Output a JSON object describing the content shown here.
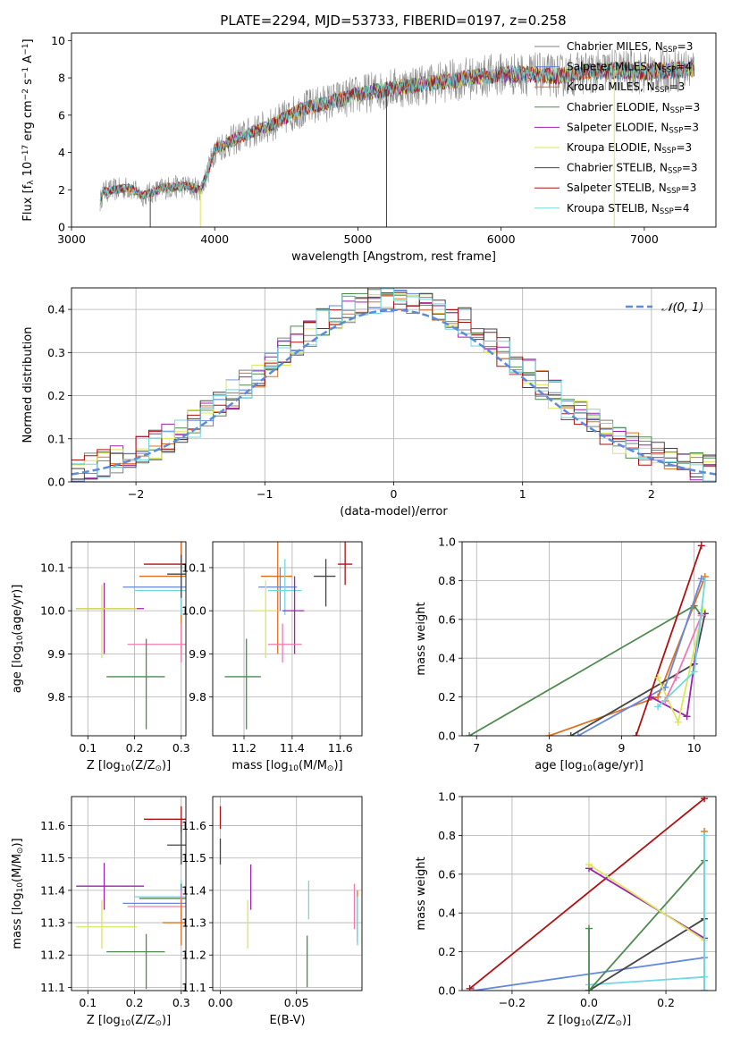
{
  "figure": {
    "title": "PLATE=2294, MJD=53733, FIBERID=0197, z=0.258"
  },
  "colors": {
    "Chabrier MILES": "#808080",
    "Salpeter MILES": "#6688dd",
    "Kroupa MILES": "#e07020",
    "Chabrier ELODIE": "#4f8a4f",
    "Salpeter ELODIE": "#a020b0",
    "Kroupa ELODIE": "#d8e858",
    "Chabrier STELIB": "#444444",
    "Salpeter STELIB": "#b01010",
    "Kroupa STELIB": "#70d8e0",
    "extra_pink": "#f07ab0",
    "normal_curve": "#5b8cd9",
    "grid": "#b0b0b0"
  },
  "chart_data": [
    {
      "type": "line",
      "panel": "spectrum",
      "title": "PLATE=2294, MJD=53733, FIBERID=0197, z=0.258",
      "xlabel": "wavelength [Angstrom, rest frame]",
      "ylabel": "Flux [f_λ 10^-17 erg cm^-2 s^-1 A^-1]",
      "xlim": [
        3000,
        7500
      ],
      "ylim": [
        0,
        10.4
      ],
      "xticks": [
        "3000",
        "4000",
        "5000",
        "6000",
        "7000"
      ],
      "yticks": [
        "0",
        "2",
        "4",
        "6",
        "8",
        "10"
      ],
      "grid": false,
      "legend_position": "top-right",
      "legend": [
        {
          "label": "Chabrier MILES, N",
          "sub": "SSP",
          "suffix": "=3",
          "color": "#808080"
        },
        {
          "label": "Salpeter MILES, N",
          "sub": "SSP",
          "suffix": "=4",
          "color": "#6688dd"
        },
        {
          "label": "Kroupa MILES, N",
          "sub": "SSP",
          "suffix": "=3",
          "color": "#e07020"
        },
        {
          "label": "Chabrier ELODIE, N",
          "sub": "SSP",
          "suffix": "=3",
          "color": "#4f8a4f"
        },
        {
          "label": "Salpeter ELODIE, N",
          "sub": "SSP",
          "suffix": "=3",
          "color": "#a020b0"
        },
        {
          "label": "Kroupa ELODIE, N",
          "sub": "SSP",
          "suffix": "=3",
          "color": "#d8e858"
        },
        {
          "label": "Chabrier STELIB, N",
          "sub": "SSP",
          "suffix": "=3",
          "color": "#444444"
        },
        {
          "label": "Salpeter STELIB, N",
          "sub": "SSP",
          "suffix": "=3",
          "color": "#b01010"
        },
        {
          "label": "Kroupa STELIB, N",
          "sub": "SSP",
          "suffix": "=4",
          "color": "#70d8e0"
        }
      ],
      "continuum": [
        [
          3200,
          1.3
        ],
        [
          3220,
          1.9
        ],
        [
          3400,
          2.1
        ],
        [
          3500,
          1.7
        ],
        [
          3650,
          2.1
        ],
        [
          3800,
          2.2
        ],
        [
          3900,
          2.0
        ],
        [
          3950,
          2.9
        ],
        [
          4000,
          4.2
        ],
        [
          4200,
          4.9
        ],
        [
          4400,
          5.5
        ],
        [
          4600,
          6.3
        ],
        [
          4800,
          6.7
        ],
        [
          5000,
          7.1
        ],
        [
          5200,
          7.4
        ],
        [
          5400,
          7.6
        ],
        [
          5600,
          7.8
        ],
        [
          5800,
          8.0
        ],
        [
          6000,
          8.2
        ],
        [
          6200,
          8.2
        ],
        [
          6400,
          8.1
        ],
        [
          6600,
          8.3
        ],
        [
          6800,
          8.4
        ],
        [
          7000,
          8.3
        ],
        [
          7200,
          8.4
        ],
        [
          7350,
          8.5
        ]
      ]
    },
    {
      "type": "line",
      "panel": "residual-histograms",
      "xlabel": "(data-model)/error",
      "ylabel": "Normed distribution",
      "xlim": [
        -2.5,
        2.5
      ],
      "ylim": [
        0,
        0.45
      ],
      "xticks": [
        "−2",
        "−1",
        "0",
        "1",
        "2"
      ],
      "yticks": [
        "0.0",
        "0.1",
        "0.2",
        "0.3",
        "0.4"
      ],
      "grid": true,
      "legend_position": "top-right",
      "legend": [
        {
          "label": "𝒩(0, 1)",
          "color": "#5b8cd9",
          "style": "dashed"
        }
      ],
      "normal": {
        "mu": 0,
        "sigma": 1
      }
    },
    {
      "type": "scatter",
      "panel": "age-vs-Z",
      "xlabel": "Z [log10(Z/Z⊙)]",
      "ylabel": "age  [log10(age/yr)]",
      "xlim": [
        0.065,
        0.31
      ],
      "ylim": [
        9.71,
        10.16
      ],
      "xticks": [
        "0.1",
        "0.2",
        "0.3"
      ],
      "yticks": [
        "9.8",
        "9.9",
        "10.0",
        "10.1"
      ],
      "grid": true,
      "points": [
        {
          "color": "#b01010",
          "x": 0.3,
          "y": 10.108,
          "xerr": [
            0.22,
            0.31
          ],
          "yerr": [
            10.06,
            10.16
          ]
        },
        {
          "color": "#e07020",
          "x": 0.3,
          "y": 10.08,
          "xerr": [
            0.21,
            0.31
          ],
          "yerr": [
            9.9,
            10.16
          ]
        },
        {
          "color": "#6688dd",
          "x": 0.3,
          "y": 10.055,
          "xerr": [
            0.175,
            0.31
          ],
          "yerr": [
            10.0,
            10.1
          ]
        },
        {
          "color": "#70d8e0",
          "x": 0.3,
          "y": 10.047,
          "xerr": [
            0.2,
            0.31
          ],
          "yerr": [
            9.99,
            10.1
          ]
        },
        {
          "color": "#444444",
          "x": 0.3,
          "y": 10.085,
          "xerr": [
            0.27,
            0.31
          ],
          "yerr": [
            10.03,
            10.13
          ]
        },
        {
          "color": "#a020b0",
          "x": 0.135,
          "y": 10.005,
          "xerr": [
            0.075,
            0.22
          ],
          "yerr": [
            9.9,
            10.065
          ]
        },
        {
          "color": "#d8e858",
          "x": 0.13,
          "y": 10.005,
          "xerr": [
            0.075,
            0.205
          ],
          "yerr": [
            9.89,
            10.06
          ]
        },
        {
          "color": "#f07ab0",
          "x": 0.3,
          "y": 9.922,
          "xerr": [
            0.185,
            0.31
          ],
          "yerr": [
            9.88,
            9.97
          ]
        },
        {
          "color": "#4f8a4f",
          "x": 0.225,
          "y": 9.847,
          "xerr": [
            0.14,
            0.265
          ],
          "yerr": [
            9.725,
            9.935
          ]
        }
      ]
    },
    {
      "type": "scatter",
      "panel": "age-vs-mass",
      "xlabel": "mass [log10(M/M⊙)]",
      "ylabel": "",
      "xlim": [
        11.07,
        11.69
      ],
      "ylim": [
        9.71,
        10.16
      ],
      "xticks": [
        "11.2",
        "11.4",
        "11.6"
      ],
      "yticks": [
        "9.8",
        "9.9",
        "10.0",
        "10.1"
      ],
      "grid": true,
      "points": [
        {
          "color": "#b01010",
          "x": 11.62,
          "y": 10.108,
          "xerr": [
            11.59,
            11.65
          ],
          "yerr": [
            10.06,
            10.16
          ]
        },
        {
          "color": "#e07020",
          "x": 11.34,
          "y": 10.08,
          "xerr": [
            11.27,
            11.4
          ],
          "yerr": [
            9.9,
            10.16
          ]
        },
        {
          "color": "#6688dd",
          "x": 11.35,
          "y": 10.055,
          "xerr": [
            11.26,
            11.42
          ],
          "yerr": [
            10.0,
            10.1
          ]
        },
        {
          "color": "#70d8e0",
          "x": 11.37,
          "y": 10.047,
          "xerr": [
            11.3,
            11.44
          ],
          "yerr": [
            9.99,
            10.12
          ]
        },
        {
          "color": "#444444",
          "x": 11.54,
          "y": 10.08,
          "xerr": [
            11.49,
            11.58
          ],
          "yerr": [
            10.01,
            10.12
          ]
        },
        {
          "color": "#a020b0",
          "x": 11.41,
          "y": 10.0,
          "xerr": [
            11.36,
            11.45
          ],
          "yerr": [
            9.9,
            10.08
          ]
        },
        {
          "color": "#d8e858",
          "x": 11.29,
          "y": 10.0,
          "xerr": [
            11.24,
            11.34
          ],
          "yerr": [
            9.89,
            10.07
          ]
        },
        {
          "color": "#f07ab0",
          "x": 11.36,
          "y": 9.922,
          "xerr": [
            11.3,
            11.44
          ],
          "yerr": [
            9.88,
            9.97
          ]
        },
        {
          "color": "#4f8a4f",
          "x": 11.21,
          "y": 9.847,
          "xerr": [
            11.12,
            11.27
          ],
          "yerr": [
            9.725,
            9.935
          ]
        }
      ]
    },
    {
      "type": "line",
      "panel": "weight-vs-age",
      "xlabel": "age  [log10(age/yr)]",
      "ylabel": "mass weight",
      "xlim": [
        6.8,
        10.3
      ],
      "ylim": [
        0,
        1.0
      ],
      "xticks": [
        "7",
        "8",
        "9",
        "10"
      ],
      "yticks": [
        "0.0",
        "0.2",
        "0.4",
        "0.6",
        "0.8",
        "1.0"
      ],
      "grid": true,
      "series": [
        {
          "color": "#4f8a4f",
          "points": [
            [
              6.9,
              0.0
            ],
            [
              10.0,
              0.67
            ],
            [
              10.1,
              0.62
            ]
          ]
        },
        {
          "color": "#e07020",
          "points": [
            [
              8.0,
              0.0
            ],
            [
              9.5,
              0.2
            ],
            [
              10.15,
              0.82
            ]
          ]
        },
        {
          "color": "#444444",
          "points": [
            [
              8.3,
              0.0
            ],
            [
              10.0,
              0.37
            ],
            [
              10.15,
              0.63
            ]
          ]
        },
        {
          "color": "#6688dd",
          "points": [
            [
              8.4,
              0.0
            ],
            [
              9.6,
              0.25
            ],
            [
              10.1,
              0.81
            ]
          ]
        },
        {
          "color": "#b01010",
          "points": [
            [
              9.2,
              0.0
            ],
            [
              10.1,
              0.98
            ]
          ]
        },
        {
          "color": "#a020b0",
          "points": [
            [
              9.4,
              0.2
            ],
            [
              9.9,
              0.1
            ],
            [
              10.1,
              0.63
            ]
          ]
        },
        {
          "color": "#d8e858",
          "points": [
            [
              9.5,
              0.3
            ],
            [
              9.78,
              0.07
            ],
            [
              10.12,
              0.65
            ]
          ]
        },
        {
          "color": "#f07ab0",
          "points": [
            [
              9.6,
              0.18
            ],
            [
              9.75,
              0.3
            ],
            [
              10.1,
              0.62
            ]
          ]
        },
        {
          "color": "#70d8e0",
          "points": [
            [
              9.5,
              0.15
            ],
            [
              10.0,
              0.33
            ],
            [
              10.15,
              0.8
            ]
          ]
        }
      ]
    },
    {
      "type": "scatter",
      "panel": "mass-vs-Z",
      "xlabel": "Z [log10(Z/Z⊙)]",
      "ylabel": "mass [log10(M/M⊙)]",
      "xlim": [
        0.065,
        0.31
      ],
      "ylim": [
        11.09,
        11.69
      ],
      "xticks": [
        "0.1",
        "0.2",
        "0.3"
      ],
      "yticks": [
        "11.1",
        "11.2",
        "11.3",
        "11.4",
        "11.5",
        "11.6"
      ],
      "grid": true,
      "points": [
        {
          "color": "#b01010",
          "x": 0.3,
          "y": 11.62,
          "xerr": [
            0.22,
            0.31
          ],
          "yerr": [
            11.58,
            11.66
          ]
        },
        {
          "color": "#444444",
          "x": 0.3,
          "y": 11.54,
          "xerr": [
            0.27,
            0.31
          ],
          "yerr": [
            11.48,
            11.6
          ]
        },
        {
          "color": "#a020b0",
          "x": 0.135,
          "y": 11.413,
          "xerr": [
            0.075,
            0.22
          ],
          "yerr": [
            11.34,
            11.485
          ]
        },
        {
          "color": "#70d8e0",
          "x": 0.3,
          "y": 11.38,
          "xerr": [
            0.2,
            0.31
          ],
          "yerr": [
            11.33,
            11.43
          ]
        },
        {
          "color": "#4f8a4f",
          "x": 0.3,
          "y": 11.375,
          "xerr": [
            0.21,
            0.31
          ],
          "yerr": [
            11.32,
            11.42
          ]
        },
        {
          "color": "#6688dd",
          "x": 0.3,
          "y": 11.36,
          "xerr": [
            0.175,
            0.31
          ],
          "yerr": [
            11.31,
            11.41
          ]
        },
        {
          "color": "#f07ab0",
          "x": 0.3,
          "y": 11.35,
          "xerr": [
            0.185,
            0.31
          ],
          "yerr": [
            11.3,
            11.4
          ]
        },
        {
          "color": "#e07020",
          "x": 0.3,
          "y": 11.3,
          "xerr": [
            0.26,
            0.31
          ],
          "yerr": [
            11.23,
            11.37
          ]
        },
        {
          "color": "#d8e858",
          "x": 0.13,
          "y": 11.287,
          "xerr": [
            0.075,
            0.205
          ],
          "yerr": [
            11.22,
            11.37
          ]
        },
        {
          "color": "#4f8a4f",
          "x": 0.225,
          "y": 11.21,
          "xerr": [
            0.14,
            0.265
          ],
          "yerr": [
            11.095,
            11.265
          ]
        }
      ]
    },
    {
      "type": "scatter",
      "panel": "mass-vs-ebv",
      "xlabel": "E(B-V)",
      "ylabel": "",
      "xlim": [
        -0.005,
        0.093
      ],
      "ylim": [
        11.09,
        11.69
      ],
      "xticks": [
        "0.00",
        "0.05"
      ],
      "yticks": [
        "11.1",
        "11.2",
        "11.3",
        "11.4",
        "11.5",
        "11.6"
      ],
      "grid": true,
      "points": [
        {
          "color": "#b01010",
          "x": 0.0,
          "y": 11.62,
          "yerr": [
            11.59,
            11.66
          ]
        },
        {
          "color": "#444444",
          "x": 0.0,
          "y": 11.52,
          "yerr": [
            11.48,
            11.56
          ]
        },
        {
          "color": "#a020b0",
          "x": 0.02,
          "y": 11.41,
          "yerr": [
            11.34,
            11.48
          ]
        },
        {
          "color": "#d8e858",
          "x": 0.018,
          "y": 11.3,
          "yerr": [
            11.22,
            11.37
          ]
        },
        {
          "color": "#70d8e0",
          "x": 0.058,
          "y": 11.37,
          "yerr": [
            11.31,
            11.43
          ]
        },
        {
          "color": "#4f8a4f",
          "x": 0.057,
          "y": 11.2,
          "yerr": [
            11.1,
            11.26
          ]
        },
        {
          "color": "#f07ab0",
          "x": 0.088,
          "y": 11.34,
          "yerr": [
            11.28,
            11.42
          ]
        },
        {
          "color": "#e07020",
          "x": 0.09,
          "y": 11.32,
          "yerr": [
            11.24,
            11.4
          ]
        },
        {
          "color": "#70d8e0",
          "x": 0.09,
          "y": 11.3,
          "yerr": [
            11.23,
            11.38
          ]
        }
      ]
    },
    {
      "type": "line",
      "panel": "weight-vs-Z",
      "xlabel": "Z [log10(Z/Z⊙)]",
      "ylabel": "mass weight",
      "xlim": [
        -0.33,
        0.33
      ],
      "ylim": [
        0,
        1.0
      ],
      "xticks": [
        "−0.2",
        "0.0",
        "0.2"
      ],
      "yticks": [
        "0.0",
        "0.2",
        "0.4",
        "0.6",
        "0.8",
        "1.0"
      ],
      "grid": true,
      "series": [
        {
          "color": "#b01010",
          "points": [
            [
              -0.31,
              0.01
            ],
            [
              0.3,
              0.99
            ]
          ]
        },
        {
          "color": "#6688dd",
          "points": [
            [
              -0.3,
              0.0
            ],
            [
              0.3,
              0.17
            ]
          ]
        },
        {
          "color": "#70d8e0",
          "points": [
            [
              0.0,
              0.03
            ],
            [
              0.3,
              0.07
            ]
          ]
        },
        {
          "color": "#444444",
          "points": [
            [
              0.0,
              0.0
            ],
            [
              0.3,
              0.37
            ]
          ]
        },
        {
          "color": "#4f8a4f",
          "points": [
            [
              0.0,
              0.0
            ],
            [
              0.3,
              0.67
            ]
          ]
        },
        {
          "color": "#a020b0",
          "points": [
            [
              0.0,
              0.63
            ],
            [
              0.3,
              0.27
            ]
          ]
        },
        {
          "color": "#d8e858",
          "points": [
            [
              0.0,
              0.65
            ],
            [
              0.3,
              0.26
            ]
          ]
        },
        {
          "color": "#4f8a4f",
          "points": [
            [
              0.0,
              0.32
            ],
            [
              0.0,
              0.0
            ]
          ]
        },
        {
          "color": "#e07020",
          "points": [
            [
              0.3,
              0.82
            ],
            [
              0.3,
              0.0
            ]
          ]
        },
        {
          "color": "#70d8e0",
          "points": [
            [
              0.3,
              0.8
            ],
            [
              0.3,
              0.0
            ]
          ]
        }
      ]
    }
  ]
}
